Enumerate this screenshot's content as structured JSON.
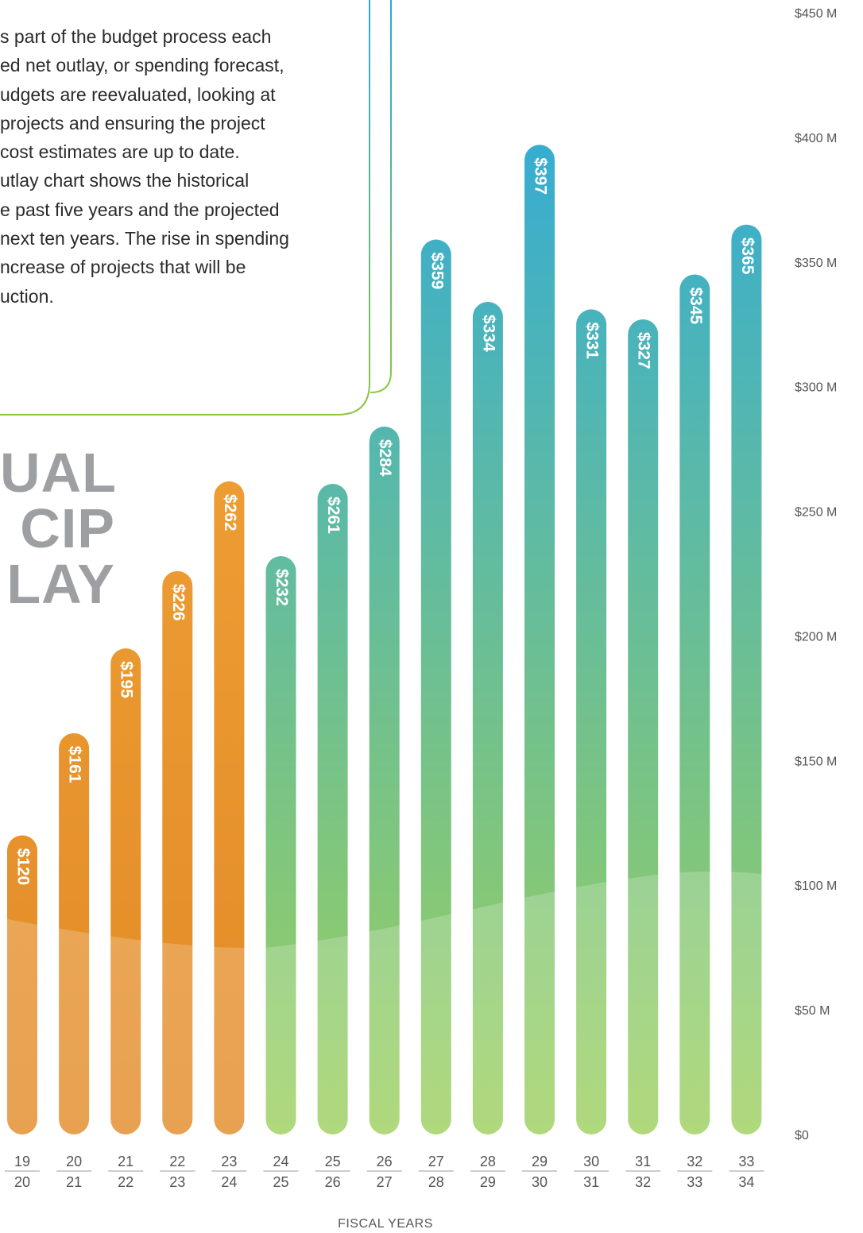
{
  "description": {
    "lines": [
      "s part of the budget process each",
      "ed net outlay, or spending forecast,",
      "udgets are reevaluated, looking at",
      "projects and ensuring the project",
      "cost estimates are up to date.",
      "utlay chart shows the historical",
      "e past five years and the projected",
      "next ten years. The rise in spending",
      "ncrease of projects that will be",
      "uction."
    ]
  },
  "title_lines": [
    "UAL",
    "CIP",
    "LAY"
  ],
  "colors": {
    "historical_top": "#f5aa3e",
    "historical_bottom": "#e28a26",
    "projected_top": "#29a8e0",
    "projected_bottom": "#9dd05c",
    "frame_top": "#2aa7df",
    "frame_bottom": "#8cc63f",
    "axis_text": "#555555"
  },
  "chart_data": {
    "type": "bar",
    "title": "",
    "xlabel": "FISCAL YEARS",
    "ylabel": "",
    "ylim": [
      0,
      450
    ],
    "y_ticks": [
      0,
      50,
      100,
      150,
      200,
      250,
      300,
      350,
      400,
      450
    ],
    "y_tick_labels": [
      "$0",
      "$50 M",
      "$100 M",
      "$150 M",
      "$200 M",
      "$250 M",
      "$300 M",
      "$350 M",
      "$400 M",
      "$450 M"
    ],
    "y_axis_position": "right",
    "grid": false,
    "categories": [
      {
        "top": "19",
        "bottom": "20"
      },
      {
        "top": "20",
        "bottom": "21"
      },
      {
        "top": "21",
        "bottom": "22"
      },
      {
        "top": "22",
        "bottom": "23"
      },
      {
        "top": "23",
        "bottom": "24"
      },
      {
        "top": "24",
        "bottom": "25"
      },
      {
        "top": "25",
        "bottom": "26"
      },
      {
        "top": "26",
        "bottom": "27"
      },
      {
        "top": "27",
        "bottom": "28"
      },
      {
        "top": "28",
        "bottom": "29"
      },
      {
        "top": "29",
        "bottom": "30"
      },
      {
        "top": "30",
        "bottom": "31"
      },
      {
        "top": "31",
        "bottom": "32"
      },
      {
        "top": "32",
        "bottom": "33"
      },
      {
        "top": "33",
        "bottom": "34"
      }
    ],
    "series": [
      {
        "values": [
          120,
          161,
          195,
          226,
          262,
          232,
          261,
          284,
          359,
          334,
          397,
          331,
          327,
          345,
          365
        ],
        "labels": [
          "$120",
          "$161",
          "$195",
          "$226",
          "$262",
          "$232",
          "$261",
          "$284",
          "$359",
          "$334",
          "$397",
          "$331",
          "$327",
          "$345",
          "$365"
        ],
        "historical_count": 5
      }
    ]
  }
}
